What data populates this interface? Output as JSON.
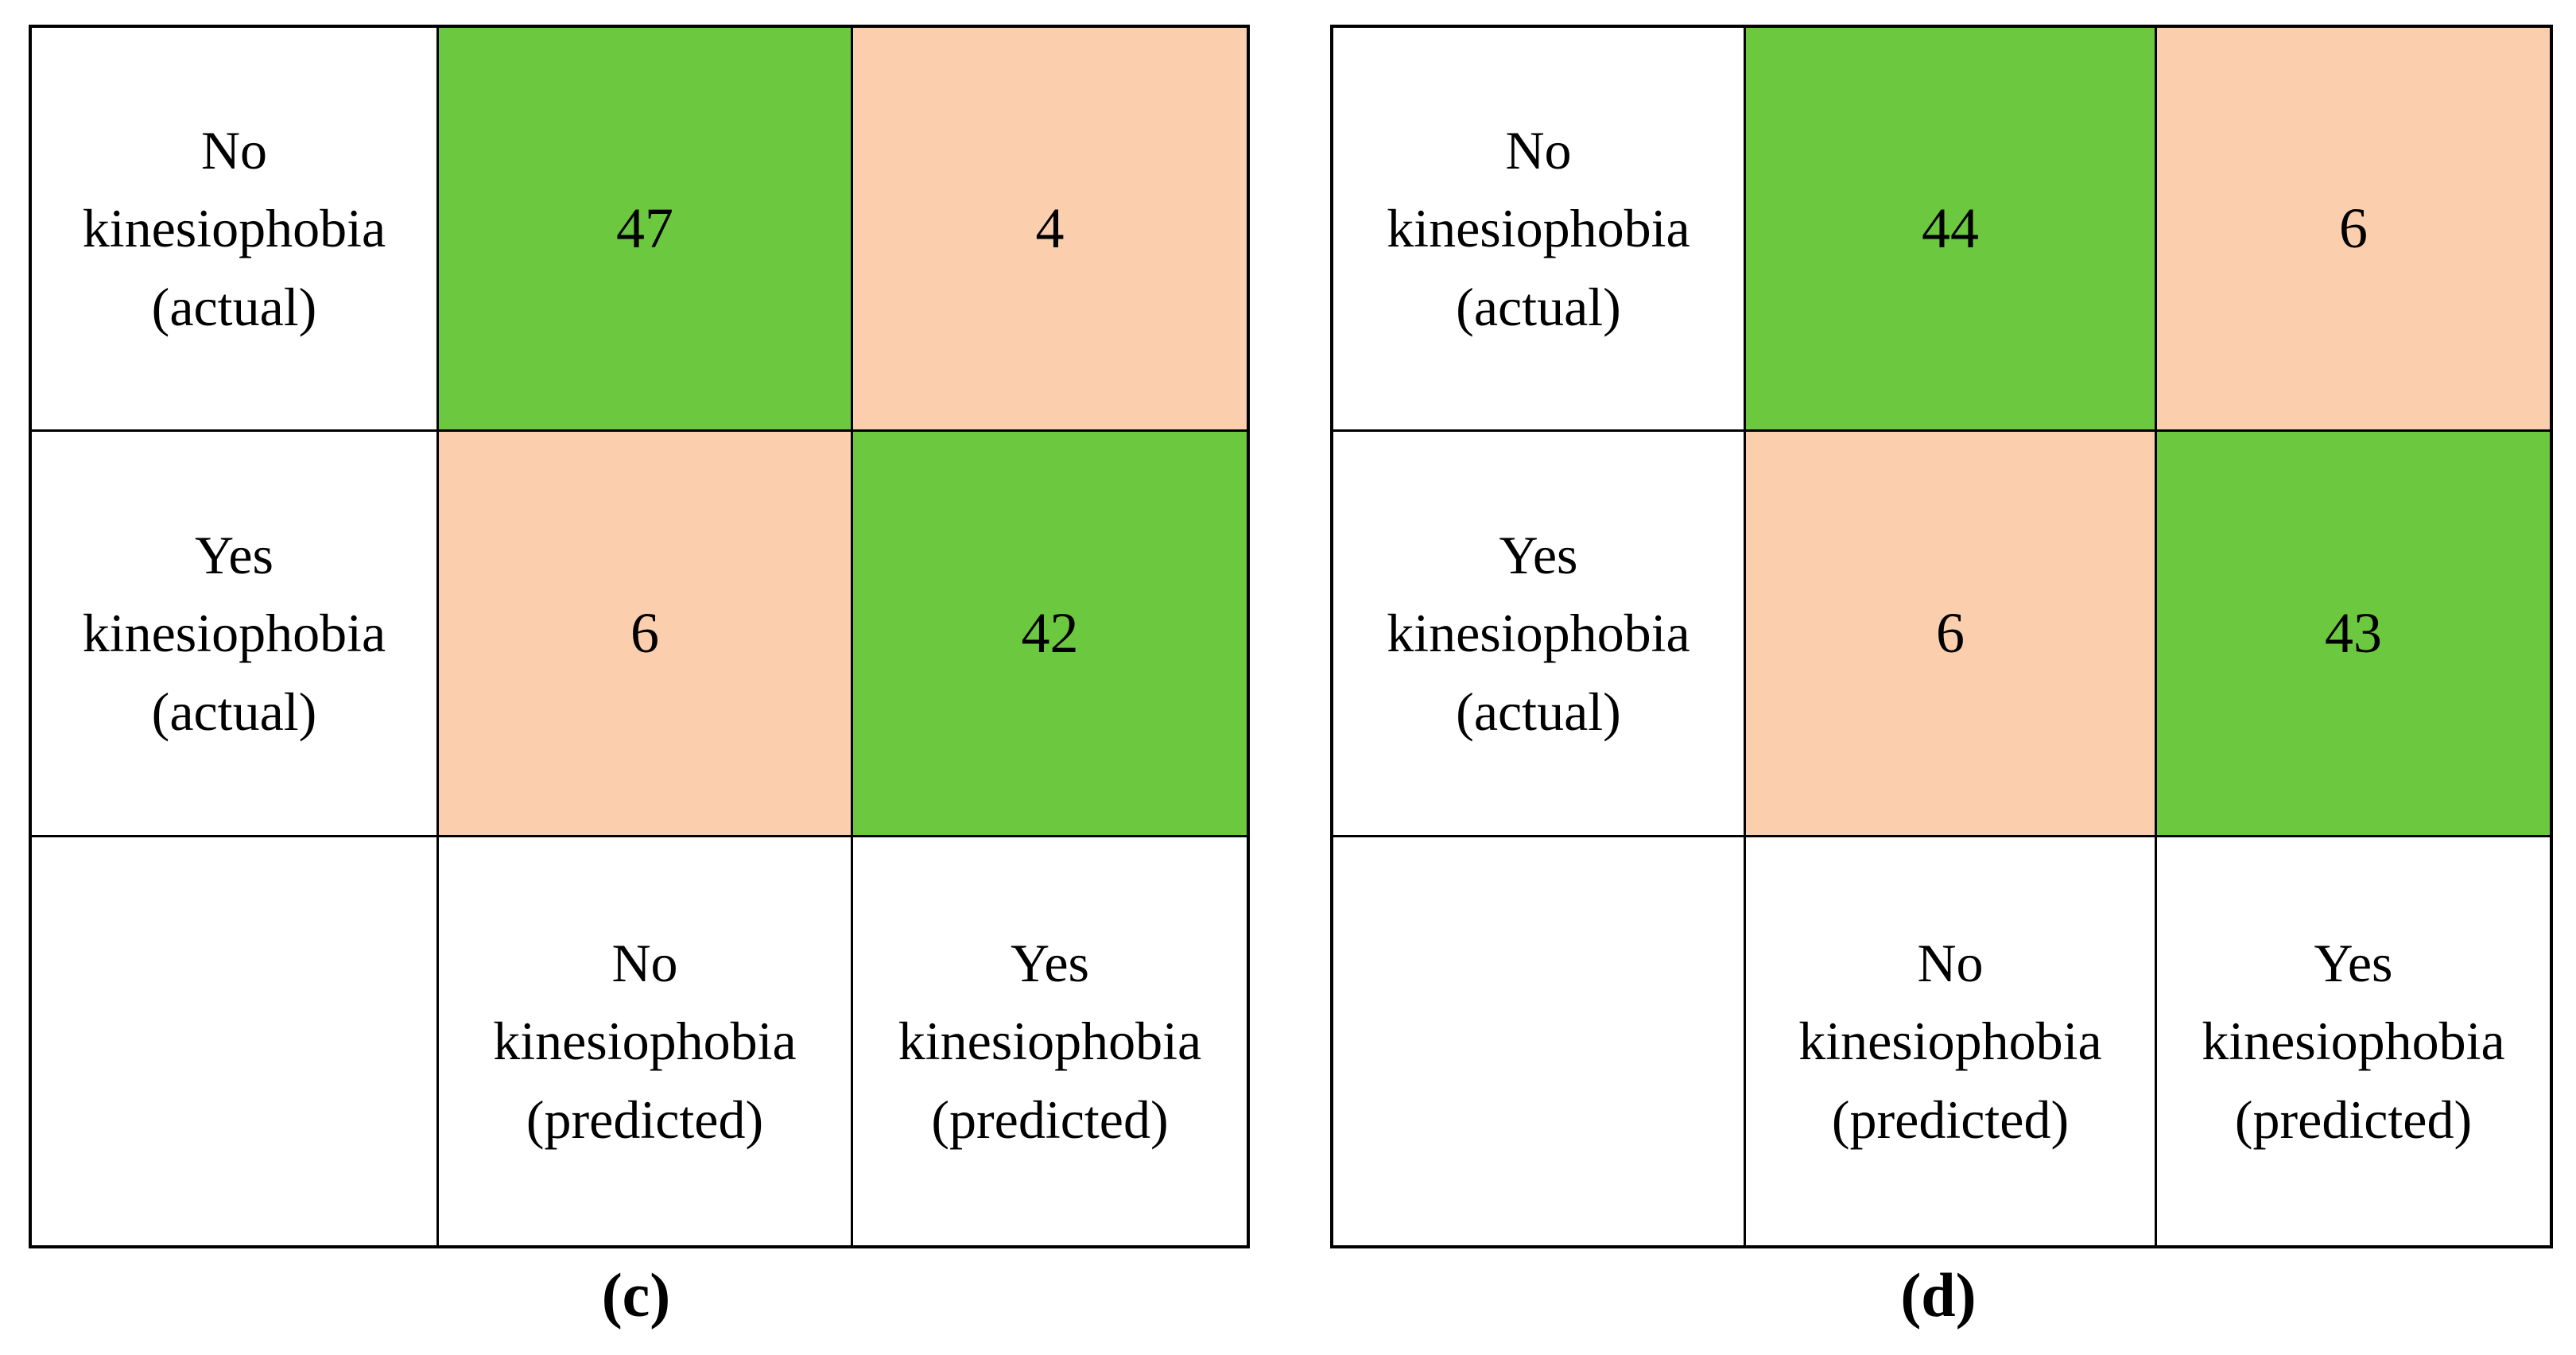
{
  "figure": {
    "colors": {
      "correct_cell": "#6CC93F",
      "incorrect_cell": "#FBCEAD",
      "border": "#000000",
      "background": "#FFFFFF",
      "text": "#000000"
    },
    "matrices": [
      {
        "caption": "(c)",
        "row_labels": [
          "No\nkinesiophobia\n(actual)",
          "Yes\nkinesiophobia\n(actual)"
        ],
        "col_labels": [
          "No\nkinesiophobia\n(predicted)",
          "Yes\nkinesiophobia\n(predicted)"
        ],
        "values": [
          [
            47,
            4
          ],
          [
            6,
            42
          ]
        ]
      },
      {
        "caption": "(d)",
        "row_labels": [
          "No\nkinesiophobia\n(actual)",
          "Yes\nkinesiophobia\n(actual)"
        ],
        "col_labels": [
          "No\nkinesiophobia\n(predicted)",
          "Yes\nkinesiophobia\n(predicted)"
        ],
        "values": [
          [
            44,
            6
          ],
          [
            6,
            43
          ]
        ]
      }
    ]
  },
  "chart_data": [
    {
      "type": "heatmap",
      "title": "(c)",
      "rows": [
        "No kinesiophobia (actual)",
        "Yes kinesiophobia (actual)"
      ],
      "columns": [
        "No kinesiophobia (predicted)",
        "Yes kinesiophobia (predicted)"
      ],
      "values": [
        [
          47,
          4
        ],
        [
          6,
          42
        ]
      ],
      "cell_colors": [
        [
          "#6CC93F",
          "#FBCEAD"
        ],
        [
          "#FBCEAD",
          "#6CC93F"
        ]
      ]
    },
    {
      "type": "heatmap",
      "title": "(d)",
      "rows": [
        "No kinesiophobia (actual)",
        "Yes kinesiophobia (actual)"
      ],
      "columns": [
        "No kinesiophobia (predicted)",
        "Yes kinesiophobia (predicted)"
      ],
      "values": [
        [
          44,
          6
        ],
        [
          6,
          43
        ]
      ],
      "cell_colors": [
        [
          "#6CC93F",
          "#FBCEAD"
        ],
        [
          "#FBCEAD",
          "#6CC93F"
        ]
      ]
    }
  ]
}
